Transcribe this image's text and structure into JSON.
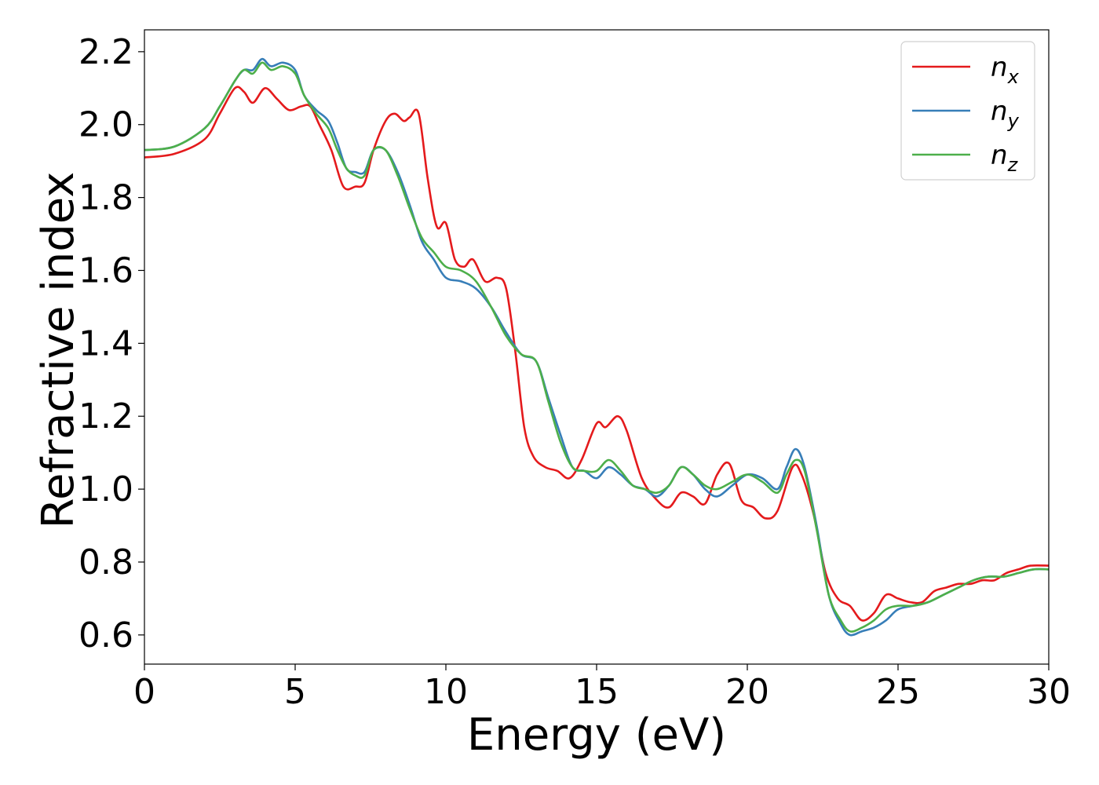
{
  "chart_data": {
    "type": "line",
    "title": "",
    "xlabel": "Energy (eV)",
    "ylabel": "Refractive index",
    "xlim": [
      0,
      30
    ],
    "ylim": [
      0.52,
      2.26
    ],
    "xticks": [
      0,
      5,
      10,
      15,
      20,
      25,
      30
    ],
    "yticks": [
      0.6,
      0.8,
      1.0,
      1.2,
      1.4,
      1.6,
      1.8,
      2.0,
      2.2
    ],
    "xtick_labels": [
      "0",
      "5",
      "10",
      "15",
      "20",
      "25",
      "30"
    ],
    "ytick_labels": [
      "0.6",
      "0.8",
      "1.0",
      "1.2",
      "1.4",
      "1.6",
      "1.8",
      "2.0",
      "2.2"
    ],
    "grid": false,
    "legend_position": "top-right",
    "series": [
      {
        "name": "n_x",
        "legend_main": "n",
        "legend_sub": "x",
        "color": "#e41a1c",
        "points": [
          [
            0,
            1.91
          ],
          [
            1,
            1.92
          ],
          [
            2,
            1.96
          ],
          [
            2.5,
            2.03
          ],
          [
            3,
            2.1
          ],
          [
            3.3,
            2.09
          ],
          [
            3.6,
            2.06
          ],
          [
            4,
            2.1
          ],
          [
            4.4,
            2.07
          ],
          [
            4.8,
            2.04
          ],
          [
            5.2,
            2.05
          ],
          [
            5.5,
            2.05
          ],
          [
            5.8,
            2.0
          ],
          [
            6.2,
            1.93
          ],
          [
            6.6,
            1.83
          ],
          [
            7,
            1.83
          ],
          [
            7.3,
            1.84
          ],
          [
            7.6,
            1.93
          ],
          [
            8,
            2.01
          ],
          [
            8.3,
            2.03
          ],
          [
            8.6,
            2.01
          ],
          [
            8.8,
            2.02
          ],
          [
            9.1,
            2.03
          ],
          [
            9.4,
            1.85
          ],
          [
            9.7,
            1.72
          ],
          [
            10,
            1.73
          ],
          [
            10.3,
            1.63
          ],
          [
            10.6,
            1.61
          ],
          [
            10.9,
            1.63
          ],
          [
            11.3,
            1.57
          ],
          [
            11.7,
            1.58
          ],
          [
            12,
            1.55
          ],
          [
            12.3,
            1.38
          ],
          [
            12.6,
            1.17
          ],
          [
            12.9,
            1.09
          ],
          [
            13.3,
            1.06
          ],
          [
            13.7,
            1.05
          ],
          [
            14.1,
            1.03
          ],
          [
            14.5,
            1.08
          ],
          [
            15,
            1.18
          ],
          [
            15.3,
            1.17
          ],
          [
            15.7,
            1.2
          ],
          [
            16,
            1.16
          ],
          [
            16.5,
            1.03
          ],
          [
            17,
            0.97
          ],
          [
            17.4,
            0.95
          ],
          [
            17.8,
            0.99
          ],
          [
            18.2,
            0.98
          ],
          [
            18.6,
            0.96
          ],
          [
            19,
            1.04
          ],
          [
            19.4,
            1.07
          ],
          [
            19.8,
            0.97
          ],
          [
            20.2,
            0.95
          ],
          [
            20.6,
            0.92
          ],
          [
            21,
            0.94
          ],
          [
            21.5,
            1.06
          ],
          [
            21.8,
            1.04
          ],
          [
            22.2,
            0.93
          ],
          [
            22.6,
            0.77
          ],
          [
            23,
            0.7
          ],
          [
            23.4,
            0.68
          ],
          [
            23.8,
            0.64
          ],
          [
            24.2,
            0.66
          ],
          [
            24.6,
            0.71
          ],
          [
            25,
            0.7
          ],
          [
            25.4,
            0.69
          ],
          [
            25.8,
            0.69
          ],
          [
            26.2,
            0.72
          ],
          [
            26.6,
            0.73
          ],
          [
            27,
            0.74
          ],
          [
            27.4,
            0.74
          ],
          [
            27.8,
            0.75
          ],
          [
            28.2,
            0.75
          ],
          [
            28.6,
            0.77
          ],
          [
            29,
            0.78
          ],
          [
            29.4,
            0.79
          ],
          [
            30,
            0.79
          ]
        ]
      },
      {
        "name": "n_y",
        "legend_main": "n",
        "legend_sub": "y",
        "color": "#377eb8",
        "points": [
          [
            0,
            1.93
          ],
          [
            1,
            1.94
          ],
          [
            2,
            1.99
          ],
          [
            2.5,
            2.05
          ],
          [
            3,
            2.12
          ],
          [
            3.3,
            2.15
          ],
          [
            3.6,
            2.15
          ],
          [
            3.9,
            2.18
          ],
          [
            4.2,
            2.16
          ],
          [
            4.6,
            2.17
          ],
          [
            5,
            2.15
          ],
          [
            5.3,
            2.08
          ],
          [
            5.7,
            2.04
          ],
          [
            6.1,
            2.01
          ],
          [
            6.4,
            1.95
          ],
          [
            6.7,
            1.88
          ],
          [
            7,
            1.87
          ],
          [
            7.3,
            1.87
          ],
          [
            7.6,
            1.93
          ],
          [
            8,
            1.93
          ],
          [
            8.4,
            1.87
          ],
          [
            8.8,
            1.78
          ],
          [
            9.2,
            1.68
          ],
          [
            9.6,
            1.63
          ],
          [
            10,
            1.58
          ],
          [
            10.5,
            1.57
          ],
          [
            11,
            1.55
          ],
          [
            11.5,
            1.5
          ],
          [
            12,
            1.43
          ],
          [
            12.5,
            1.37
          ],
          [
            13,
            1.35
          ],
          [
            13.4,
            1.25
          ],
          [
            13.8,
            1.15
          ],
          [
            14.2,
            1.06
          ],
          [
            14.6,
            1.05
          ],
          [
            15,
            1.03
          ],
          [
            15.4,
            1.06
          ],
          [
            15.8,
            1.04
          ],
          [
            16.2,
            1.01
          ],
          [
            16.6,
            1.0
          ],
          [
            17,
            0.98
          ],
          [
            17.4,
            1.01
          ],
          [
            17.8,
            1.06
          ],
          [
            18.2,
            1.04
          ],
          [
            18.6,
            1.0
          ],
          [
            19,
            0.98
          ],
          [
            19.5,
            1.01
          ],
          [
            20,
            1.04
          ],
          [
            20.5,
            1.03
          ],
          [
            21,
            1.0
          ],
          [
            21.3,
            1.06
          ],
          [
            21.6,
            1.11
          ],
          [
            21.9,
            1.06
          ],
          [
            22.3,
            0.9
          ],
          [
            22.7,
            0.71
          ],
          [
            23.1,
            0.63
          ],
          [
            23.4,
            0.6
          ],
          [
            23.8,
            0.61
          ],
          [
            24.2,
            0.62
          ],
          [
            24.6,
            0.64
          ],
          [
            25,
            0.67
          ],
          [
            25.5,
            0.68
          ],
          [
            26,
            0.69
          ],
          [
            26.5,
            0.71
          ],
          [
            27,
            0.73
          ],
          [
            27.5,
            0.75
          ],
          [
            28,
            0.76
          ],
          [
            28.5,
            0.76
          ],
          [
            29,
            0.77
          ],
          [
            29.5,
            0.78
          ],
          [
            30,
            0.78
          ]
        ]
      },
      {
        "name": "n_z",
        "legend_main": "n",
        "legend_sub": "z",
        "color": "#4daf4a",
        "points": [
          [
            0,
            1.93
          ],
          [
            1,
            1.94
          ],
          [
            2,
            1.99
          ],
          [
            2.5,
            2.05
          ],
          [
            3,
            2.12
          ],
          [
            3.3,
            2.15
          ],
          [
            3.6,
            2.14
          ],
          [
            3.9,
            2.17
          ],
          [
            4.2,
            2.15
          ],
          [
            4.6,
            2.16
          ],
          [
            5,
            2.14
          ],
          [
            5.3,
            2.08
          ],
          [
            5.7,
            2.03
          ],
          [
            6.1,
            1.99
          ],
          [
            6.4,
            1.93
          ],
          [
            6.7,
            1.88
          ],
          [
            7,
            1.86
          ],
          [
            7.3,
            1.86
          ],
          [
            7.6,
            1.93
          ],
          [
            8,
            1.93
          ],
          [
            8.4,
            1.86
          ],
          [
            8.8,
            1.77
          ],
          [
            9.2,
            1.69
          ],
          [
            9.6,
            1.65
          ],
          [
            10,
            1.61
          ],
          [
            10.5,
            1.6
          ],
          [
            11,
            1.57
          ],
          [
            11.5,
            1.5
          ],
          [
            12,
            1.42
          ],
          [
            12.5,
            1.37
          ],
          [
            13,
            1.35
          ],
          [
            13.4,
            1.24
          ],
          [
            13.8,
            1.13
          ],
          [
            14.2,
            1.06
          ],
          [
            14.6,
            1.05
          ],
          [
            15,
            1.05
          ],
          [
            15.4,
            1.08
          ],
          [
            15.8,
            1.05
          ],
          [
            16.2,
            1.01
          ],
          [
            16.6,
            1.0
          ],
          [
            17,
            0.99
          ],
          [
            17.4,
            1.01
          ],
          [
            17.8,
            1.06
          ],
          [
            18.2,
            1.04
          ],
          [
            18.6,
            1.01
          ],
          [
            19,
            1.0
          ],
          [
            19.5,
            1.02
          ],
          [
            20,
            1.04
          ],
          [
            20.5,
            1.02
          ],
          [
            21,
            0.99
          ],
          [
            21.3,
            1.04
          ],
          [
            21.6,
            1.08
          ],
          [
            21.9,
            1.05
          ],
          [
            22.3,
            0.89
          ],
          [
            22.7,
            0.71
          ],
          [
            23.1,
            0.64
          ],
          [
            23.4,
            0.61
          ],
          [
            23.8,
            0.62
          ],
          [
            24.2,
            0.64
          ],
          [
            24.6,
            0.67
          ],
          [
            25,
            0.68
          ],
          [
            25.5,
            0.68
          ],
          [
            26,
            0.69
          ],
          [
            26.5,
            0.71
          ],
          [
            27,
            0.73
          ],
          [
            27.5,
            0.75
          ],
          [
            28,
            0.76
          ],
          [
            28.5,
            0.76
          ],
          [
            29,
            0.77
          ],
          [
            29.5,
            0.78
          ],
          [
            30,
            0.78
          ]
        ]
      }
    ]
  }
}
